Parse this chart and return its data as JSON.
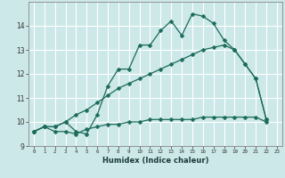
{
  "xlabel": "Humidex (Indice chaleur)",
  "background_color": "#cde8e8",
  "grid_color": "#ffffff",
  "line_color": "#1a6b5a",
  "xlim": [
    -0.5,
    23.5
  ],
  "ylim": [
    9,
    15
  ],
  "xticks": [
    0,
    1,
    2,
    3,
    4,
    5,
    6,
    7,
    8,
    9,
    10,
    11,
    12,
    13,
    14,
    15,
    16,
    17,
    18,
    19,
    20,
    21,
    22,
    23
  ],
  "yticks": [
    9,
    10,
    11,
    12,
    13,
    14
  ],
  "series1_x": [
    0,
    1,
    2,
    3,
    4,
    5,
    6,
    7,
    8,
    9,
    10,
    11,
    12,
    13,
    14,
    15,
    16,
    17,
    18,
    19,
    20,
    21,
    22
  ],
  "series1_y": [
    9.6,
    9.8,
    9.6,
    9.6,
    9.5,
    9.7,
    9.8,
    9.9,
    9.9,
    10.0,
    10.0,
    10.1,
    10.1,
    10.1,
    10.1,
    10.1,
    10.2,
    10.2,
    10.2,
    10.2,
    10.2,
    10.2,
    10.0
  ],
  "series2_x": [
    0,
    1,
    2,
    3,
    4,
    5,
    6,
    7,
    8,
    9,
    10,
    11,
    12,
    13,
    14,
    15,
    16,
    17,
    18,
    19,
    20,
    21,
    22
  ],
  "series2_y": [
    9.6,
    9.8,
    9.8,
    10.0,
    10.3,
    10.5,
    10.8,
    11.1,
    11.4,
    11.6,
    11.8,
    12.0,
    12.2,
    12.4,
    12.6,
    12.8,
    13.0,
    13.1,
    13.2,
    13.0,
    12.4,
    11.8,
    10.1
  ],
  "series3_x": [
    0,
    1,
    2,
    3,
    4,
    5,
    6,
    7,
    8,
    9,
    10,
    11,
    12,
    13,
    14,
    15,
    16,
    17,
    18,
    19,
    20,
    21,
    22
  ],
  "series3_y": [
    9.6,
    9.8,
    9.8,
    10.0,
    9.6,
    9.5,
    10.3,
    11.5,
    12.2,
    12.2,
    13.2,
    13.2,
    13.8,
    14.2,
    13.6,
    14.5,
    14.4,
    14.1,
    13.4,
    13.0,
    12.4,
    11.8,
    10.1
  ]
}
